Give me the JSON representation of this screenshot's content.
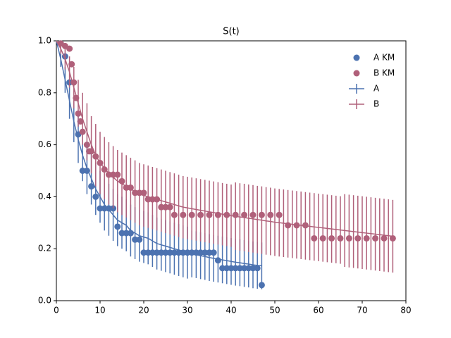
{
  "chart_data": {
    "type": "survival",
    "title": "S(t)",
    "xlim": [
      0,
      80
    ],
    "ylim": [
      0,
      1
    ],
    "xticks": [
      0,
      10,
      20,
      30,
      40,
      50,
      60,
      70,
      80
    ],
    "yticks": [
      {
        "value": 0,
        "label": "0.0"
      },
      {
        "value": 0.2,
        "label": "0.2"
      },
      {
        "value": 0.4,
        "label": "0.4"
      },
      {
        "value": 0.6,
        "label": "0.6"
      },
      {
        "value": 0.8,
        "label": "0.8"
      },
      {
        "value": 1,
        "label": "1.0"
      }
    ],
    "legend": "upper right",
    "series": [
      {
        "name": "A KM",
        "kind": "scatter",
        "color": "#4c72b0",
        "x": [
          1,
          2,
          3,
          5,
          6,
          7,
          8,
          9,
          10,
          11,
          12,
          13,
          14,
          15,
          16,
          17,
          18,
          19,
          20,
          21,
          22,
          23,
          24,
          25,
          26,
          27,
          28,
          29,
          30,
          31,
          32,
          33,
          34,
          35,
          36,
          37,
          38,
          39,
          40,
          41,
          42,
          43,
          44,
          45,
          46,
          47
        ],
        "values": [
          0.99,
          0.94,
          0.84,
          0.64,
          0.5,
          0.5,
          0.44,
          0.4,
          0.355,
          0.355,
          0.355,
          0.355,
          0.285,
          0.26,
          0.26,
          0.26,
          0.235,
          0.235,
          0.185,
          0.185,
          0.185,
          0.185,
          0.185,
          0.185,
          0.185,
          0.185,
          0.185,
          0.185,
          0.185,
          0.185,
          0.185,
          0.185,
          0.185,
          0.185,
          0.185,
          0.155,
          0.125,
          0.125,
          0.125,
          0.125,
          0.125,
          0.125,
          0.125,
          0.125,
          0.125,
          0.06
        ]
      },
      {
        "name": "B KM",
        "kind": "scatter",
        "color": "#b0607a",
        "x": [
          1,
          2,
          3,
          3.5,
          4,
          4.5,
          5,
          5.5,
          6,
          7,
          7.5,
          8,
          9,
          10,
          11,
          12,
          13,
          14,
          15,
          16,
          17,
          18,
          19,
          20,
          21,
          22,
          23,
          24,
          25,
          26,
          27,
          29,
          31,
          33,
          35,
          37,
          39,
          41,
          43,
          45,
          47,
          49,
          51,
          53,
          55,
          57,
          59,
          61,
          63,
          65,
          67,
          69,
          71,
          73,
          75,
          77
        ],
        "values": [
          0.99,
          0.98,
          0.97,
          0.91,
          0.84,
          0.78,
          0.72,
          0.69,
          0.65,
          0.6,
          0.575,
          0.575,
          0.555,
          0.53,
          0.505,
          0.485,
          0.485,
          0.485,
          0.46,
          0.435,
          0.435,
          0.415,
          0.415,
          0.415,
          0.39,
          0.39,
          0.39,
          0.36,
          0.36,
          0.36,
          0.33,
          0.33,
          0.33,
          0.33,
          0.33,
          0.33,
          0.33,
          0.33,
          0.33,
          0.33,
          0.33,
          0.33,
          0.33,
          0.29,
          0.29,
          0.29,
          0.24,
          0.24,
          0.24,
          0.24,
          0.24,
          0.24,
          0.24,
          0.24,
          0.24,
          0.24
        ]
      },
      {
        "name": "A",
        "kind": "errorbar",
        "color": "#4c72b0",
        "x": [
          0,
          1,
          2,
          3,
          4,
          5,
          6,
          7,
          8,
          9,
          10,
          11,
          12,
          13,
          14,
          15,
          16,
          17,
          18,
          19,
          20,
          21,
          22,
          23,
          24,
          25,
          26,
          27,
          28,
          29,
          30,
          31,
          32,
          33,
          34,
          35,
          36,
          37,
          38,
          39,
          40,
          41,
          42,
          43,
          44,
          45,
          46,
          47
        ],
        "values": [
          1,
          0.93,
          0.85,
          0.77,
          0.69,
          0.62,
          0.56,
          0.51,
          0.47,
          0.43,
          0.4,
          0.37,
          0.35,
          0.33,
          0.31,
          0.3,
          0.29,
          0.27,
          0.26,
          0.25,
          0.245,
          0.24,
          0.23,
          0.22,
          0.215,
          0.21,
          0.205,
          0.2,
          0.195,
          0.19,
          0.185,
          0.18,
          0.177,
          0.173,
          0.17,
          0.166,
          0.163,
          0.16,
          0.157,
          0.154,
          0.151,
          0.148,
          0.146,
          0.143,
          0.141,
          0.138,
          0.136,
          0.134
        ],
        "errors": [
          null,
          0.03,
          0.05,
          0.07,
          0.08,
          0.09,
          0.1,
          0.1,
          0.1,
          0.1,
          0.1,
          0.1,
          0.1,
          0.1,
          0.1,
          0.1,
          0.1,
          0.1,
          0.1,
          0.1,
          0.1,
          0.1,
          0.1,
          0.1,
          0.1,
          0.1,
          0.1,
          0.1,
          0.1,
          0.1,
          0.1,
          0.09,
          0.09,
          0.09,
          0.09,
          0.09,
          0.09,
          0.09,
          0.09,
          0.09,
          0.09,
          0.09,
          0.09,
          0.09,
          0.09,
          0.09,
          0.09,
          0.09
        ]
      },
      {
        "name": "B",
        "kind": "errorbar",
        "color": "#b0607a",
        "x": [
          0,
          1,
          2,
          3,
          4,
          5,
          6,
          7,
          8,
          9,
          10,
          11,
          12,
          13,
          14,
          15,
          16,
          17,
          18,
          19,
          20,
          21,
          22,
          23,
          24,
          25,
          26,
          27,
          28,
          29,
          30,
          31,
          32,
          33,
          34,
          35,
          36,
          37,
          38,
          39,
          40,
          41,
          42,
          43,
          44,
          45,
          46,
          47,
          48,
          49,
          50,
          51,
          52,
          53,
          54,
          55,
          56,
          57,
          58,
          59,
          60,
          61,
          62,
          63,
          64,
          65,
          66,
          67,
          68,
          69,
          70,
          71,
          72,
          73,
          74,
          75,
          76,
          77
        ],
        "values": [
          1,
          0.97,
          0.93,
          0.88,
          0.82,
          0.76,
          0.7,
          0.65,
          0.6,
          0.56,
          0.53,
          0.51,
          0.49,
          0.475,
          0.46,
          0.45,
          0.44,
          0.43,
          0.42,
          0.41,
          0.405,
          0.4,
          0.395,
          0.39,
          0.385,
          0.38,
          0.375,
          0.37,
          0.365,
          0.36,
          0.357,
          0.354,
          0.351,
          0.348,
          0.345,
          0.342,
          0.339,
          0.336,
          0.333,
          0.33,
          0.327,
          0.325,
          0.322,
          0.32,
          0.317,
          0.315,
          0.312,
          0.31,
          0.307,
          0.305,
          0.302,
          0.3,
          0.298,
          0.296,
          0.294,
          0.292,
          0.29,
          0.288,
          0.286,
          0.284,
          0.282,
          0.28,
          0.278,
          0.276,
          0.274,
          0.272,
          0.27,
          0.268,
          0.266,
          0.264,
          0.262,
          0.26,
          0.258,
          0.256,
          0.254,
          0.252,
          0.25,
          0.248
        ],
        "errors": [
          null,
          0.02,
          0.04,
          0.06,
          0.08,
          0.09,
          0.1,
          0.11,
          0.11,
          0.12,
          0.12,
          0.12,
          0.12,
          0.12,
          0.12,
          0.12,
          0.12,
          0.12,
          0.12,
          0.12,
          0.12,
          0.12,
          0.12,
          0.12,
          0.12,
          0.12,
          0.12,
          0.12,
          0.12,
          0.12,
          0.12,
          0.12,
          0.12,
          0.12,
          0.12,
          0.12,
          0.12,
          0.12,
          0.12,
          0.12,
          0.12,
          0.13,
          0.13,
          0.13,
          0.13,
          0.13,
          0.13,
          0.13,
          0.13,
          0.13,
          0.13,
          0.13,
          0.13,
          0.13,
          0.13,
          0.13,
          0.13,
          0.13,
          0.13,
          0.13,
          0.13,
          0.13,
          0.13,
          0.13,
          0.13,
          0.13,
          0.14,
          0.14,
          0.14,
          0.14,
          0.14,
          0.14,
          0.14,
          0.14,
          0.14,
          0.14,
          0.14,
          0.14
        ]
      }
    ]
  }
}
